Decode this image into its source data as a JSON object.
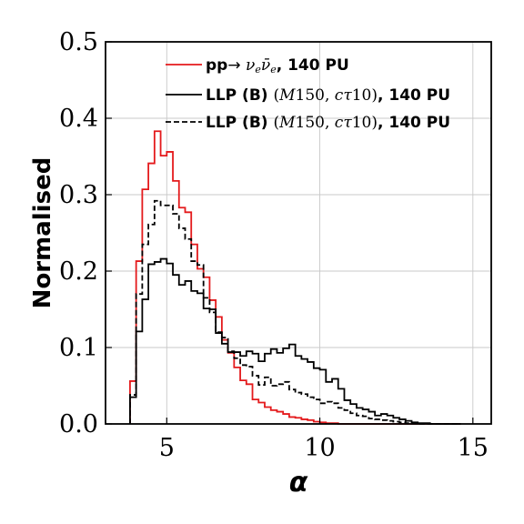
{
  "chart_data": {
    "type": "step-histogram",
    "xlabel": "α",
    "ylabel": "Normalised",
    "xlim": [
      3.0,
      15.6
    ],
    "ylim": [
      0,
      0.5
    ],
    "xticks": [
      5,
      10,
      15
    ],
    "yticks": [
      0.0,
      0.1,
      0.2,
      0.3,
      0.4,
      0.5
    ],
    "xtick_labels": [
      "5",
      "10",
      "15"
    ],
    "ytick_labels": [
      "0.0",
      "0.1",
      "0.2",
      "0.3",
      "0.4",
      "0.5"
    ],
    "grid": true,
    "legend_position": "top",
    "bin_edges": [
      3.8,
      4.0,
      4.2,
      4.4,
      4.6,
      4.8,
      5.0,
      5.2,
      5.4,
      5.6,
      5.8,
      6.0,
      6.2,
      6.4,
      6.6,
      6.8,
      7.0,
      7.2,
      7.4,
      7.6,
      7.8,
      8.0,
      8.2,
      8.4,
      8.6,
      8.8,
      9.0,
      9.2,
      9.4,
      9.6,
      9.8,
      10.0,
      10.2,
      10.4,
      10.6,
      10.8,
      11.0,
      11.2,
      11.4,
      11.6,
      11.8,
      12.0,
      12.2,
      12.4,
      12.6,
      12.8,
      13.0,
      13.2,
      13.4,
      13.6,
      13.8,
      14.0,
      14.2,
      14.4,
      14.6
    ],
    "series": [
      {
        "name_parts": [
          "pp",
          "→ ",
          "ν",
          "e",
          "ν̄",
          "e",
          ", 140 PU"
        ],
        "color": "#e41a1c",
        "dash": "solid",
        "values": [
          0.056,
          0.213,
          0.307,
          0.341,
          0.383,
          0.351,
          0.356,
          0.318,
          0.283,
          0.277,
          0.235,
          0.203,
          0.192,
          0.162,
          0.14,
          0.11,
          0.093,
          0.074,
          0.057,
          0.052,
          0.032,
          0.028,
          0.022,
          0.018,
          0.016,
          0.013,
          0.009,
          0.008,
          0.006,
          0.005,
          0.003,
          0.002,
          0.001,
          0.001,
          0.0,
          0.0,
          0.0,
          0.0,
          0.0,
          0.0,
          0.0,
          0.0,
          0.0,
          0.0,
          0.0,
          0.0,
          0.0,
          0.0,
          0.0,
          0.0,
          0.0,
          0.0,
          0.0,
          0.0
        ]
      },
      {
        "name_parts": [
          "LLP (B) ",
          "(",
          "M",
          "150, ",
          "cτ",
          "10)",
          ", 140 PU"
        ],
        "color": "#000000",
        "dash": "solid",
        "values": [
          0.035,
          0.121,
          0.163,
          0.209,
          0.212,
          0.216,
          0.21,
          0.195,
          0.182,
          0.187,
          0.174,
          0.171,
          0.151,
          0.15,
          0.119,
          0.105,
          0.094,
          0.094,
          0.089,
          0.095,
          0.092,
          0.082,
          0.092,
          0.098,
          0.093,
          0.099,
          0.104,
          0.089,
          0.085,
          0.081,
          0.073,
          0.071,
          0.055,
          0.059,
          0.046,
          0.031,
          0.026,
          0.021,
          0.019,
          0.016,
          0.011,
          0.013,
          0.011,
          0.008,
          0.006,
          0.004,
          0.002,
          0.001,
          0.001,
          0.0,
          0.0,
          0.0,
          0.0,
          0.0
        ]
      },
      {
        "name_parts": [
          "LLP (B) ",
          "(",
          "M",
          "150, ",
          "cτ",
          "10)",
          ", 140 PU"
        ],
        "color": "#000000",
        "dash": "dashed",
        "values": [
          0.038,
          0.17,
          0.235,
          0.261,
          0.292,
          0.286,
          0.286,
          0.275,
          0.256,
          0.242,
          0.213,
          0.208,
          0.165,
          0.146,
          0.12,
          0.113,
          0.095,
          0.086,
          0.077,
          0.075,
          0.063,
          0.051,
          0.061,
          0.05,
          0.052,
          0.055,
          0.045,
          0.041,
          0.039,
          0.035,
          0.032,
          0.027,
          0.029,
          0.027,
          0.021,
          0.018,
          0.014,
          0.011,
          0.01,
          0.007,
          0.006,
          0.005,
          0.004,
          0.003,
          0.002,
          0.001,
          0.001,
          0.0,
          0.0,
          0.0,
          0.0,
          0.0,
          0.0,
          0.0
        ]
      }
    ]
  }
}
